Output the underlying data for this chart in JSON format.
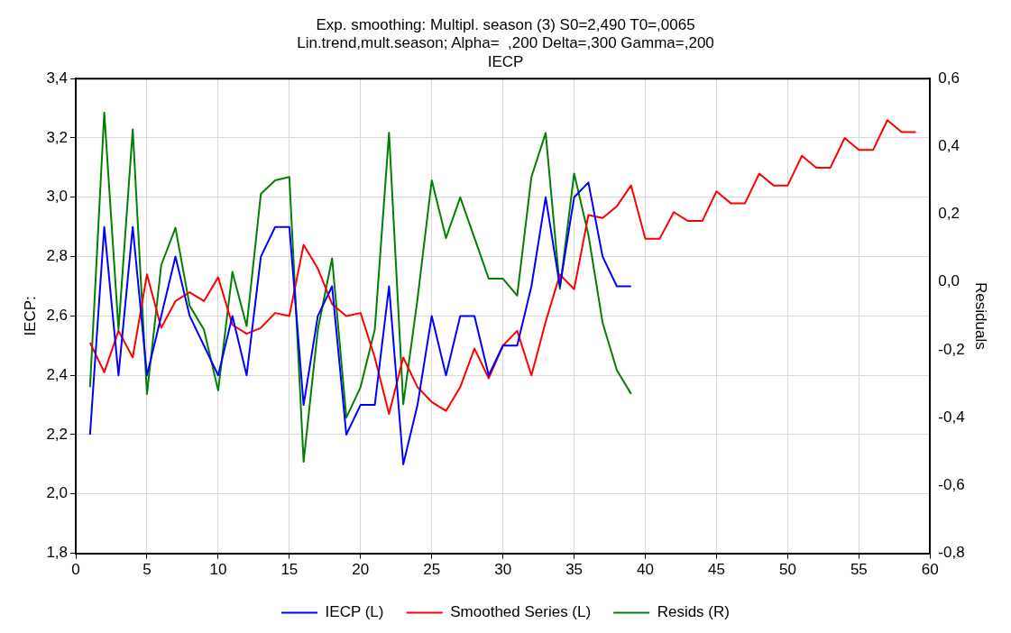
{
  "chart_data": {
    "type": "line",
    "title": "Exp. smoothing: Multipl. season (3) S0=2,490 T0=,0065",
    "subtitle": "Lin.trend,mult.season; Alpha=  ,200 Delta=,300 Gamma=,200",
    "annotations": [
      "IECP"
    ],
    "ylabel": "IECP:",
    "y2label": "Residuals",
    "xlim": [
      0,
      60
    ],
    "xticks": [
      0,
      5,
      10,
      15,
      20,
      25,
      30,
      35,
      40,
      45,
      50,
      55,
      60
    ],
    "ylim": [
      1.8,
      3.4
    ],
    "yticks": [
      {
        "value": 1.8,
        "label": "1,8"
      },
      {
        "value": 2.0,
        "label": "2,0"
      },
      {
        "value": 2.2,
        "label": "2,2"
      },
      {
        "value": 2.4,
        "label": "2,4"
      },
      {
        "value": 2.6,
        "label": "2,6"
      },
      {
        "value": 2.8,
        "label": "2,8"
      },
      {
        "value": 3.0,
        "label": "3,0"
      },
      {
        "value": 3.2,
        "label": "3,2"
      },
      {
        "value": 3.4,
        "label": "3,4"
      }
    ],
    "y2lim": [
      -0.8,
      0.6
    ],
    "y2ticks": [
      {
        "value": -0.8,
        "label": "-0,8"
      },
      {
        "value": -0.6,
        "label": "-0,6"
      },
      {
        "value": -0.4,
        "label": "-0,4"
      },
      {
        "value": -0.2,
        "label": "-0,2"
      },
      {
        "value": 0,
        "label": "0,0"
      },
      {
        "value": 0.2,
        "label": "0,2"
      },
      {
        "value": 0.4,
        "label": "0,4"
      },
      {
        "value": 0.6,
        "label": "0,6"
      }
    ],
    "grid": true,
    "legend": "bottom",
    "marker": "none",
    "line_style": "solid",
    "series": [
      {
        "name": "IECP (L)",
        "color": "#0000ff",
        "x": [
          1,
          2,
          3,
          4,
          5,
          6,
          7,
          8,
          9,
          10,
          11,
          12,
          13,
          14,
          15,
          16,
          17,
          18,
          19,
          20,
          21,
          22,
          23,
          24,
          25,
          26,
          27,
          28,
          29,
          30,
          31,
          32,
          33,
          34,
          35,
          36,
          37,
          38,
          39
        ],
        "values": [
          2.2,
          2.9,
          2.4,
          2.9,
          2.4,
          2.6,
          2.8,
          2.6,
          2.5,
          2.4,
          2.6,
          2.4,
          2.8,
          2.9,
          2.9,
          2.3,
          2.6,
          2.7,
          2.2,
          2.3,
          2.3,
          2.7,
          2.1,
          2.3,
          2.6,
          2.4,
          2.6,
          2.6,
          2.4,
          2.5,
          2.5,
          2.7,
          3.0,
          2.7,
          3.0,
          3.05,
          2.8,
          2.7,
          2.7
        ]
      },
      {
        "name": "Smoothed Series (L)",
        "color": "#ff0000",
        "x": [
          1,
          2,
          3,
          4,
          5,
          6,
          7,
          8,
          9,
          10,
          11,
          12,
          13,
          14,
          15,
          16,
          17,
          18,
          19,
          20,
          21,
          22,
          23,
          24,
          25,
          26,
          27,
          28,
          29,
          30,
          31,
          32,
          33,
          34,
          35,
          36,
          37,
          38,
          39,
          40,
          41,
          42,
          43,
          44,
          45,
          46,
          47,
          48,
          49,
          50,
          51,
          52,
          53,
          54,
          55,
          56,
          57,
          58,
          59
        ],
        "values": [
          2.51,
          2.41,
          2.55,
          2.46,
          2.74,
          2.56,
          2.65,
          2.68,
          2.65,
          2.73,
          2.57,
          2.54,
          2.56,
          2.61,
          2.6,
          2.84,
          2.76,
          2.64,
          2.6,
          2.61,
          2.46,
          2.27,
          2.46,
          2.36,
          2.31,
          2.28,
          2.36,
          2.49,
          2.39,
          2.5,
          2.55,
          2.4,
          2.58,
          2.74,
          2.69,
          2.94,
          2.93,
          2.97,
          3.04,
          2.86,
          2.86,
          2.95,
          2.92,
          2.92,
          3.02,
          2.98,
          2.98,
          3.08,
          3.04,
          3.04,
          3.14,
          3.1,
          3.1,
          3.2,
          3.16,
          3.16,
          3.26,
          3.22,
          3.22
        ]
      },
      {
        "name": "Resids (R)",
        "color": "#008000",
        "axis": "y2",
        "x": [
          1,
          2,
          3,
          4,
          5,
          6,
          7,
          8,
          9,
          10,
          11,
          12,
          13,
          14,
          15,
          16,
          17,
          18,
          19,
          20,
          21,
          22,
          23,
          24,
          25,
          26,
          27,
          28,
          29,
          30,
          31,
          32,
          33,
          34,
          35,
          36,
          37,
          38,
          39
        ],
        "values": [
          -0.31,
          0.5,
          -0.14,
          0.45,
          -0.33,
          0.05,
          0.16,
          -0.07,
          -0.14,
          -0.32,
          0.03,
          -0.13,
          0.26,
          0.3,
          0.31,
          -0.53,
          -0.14,
          0.07,
          -0.4,
          -0.31,
          -0.14,
          0.44,
          -0.36,
          -0.05,
          0.3,
          0.13,
          0.25,
          0.13,
          0.01,
          0.01,
          -0.04,
          0.31,
          0.44,
          -0.02,
          0.32,
          0.14,
          -0.12,
          -0.26,
          -0.33
        ]
      }
    ]
  }
}
